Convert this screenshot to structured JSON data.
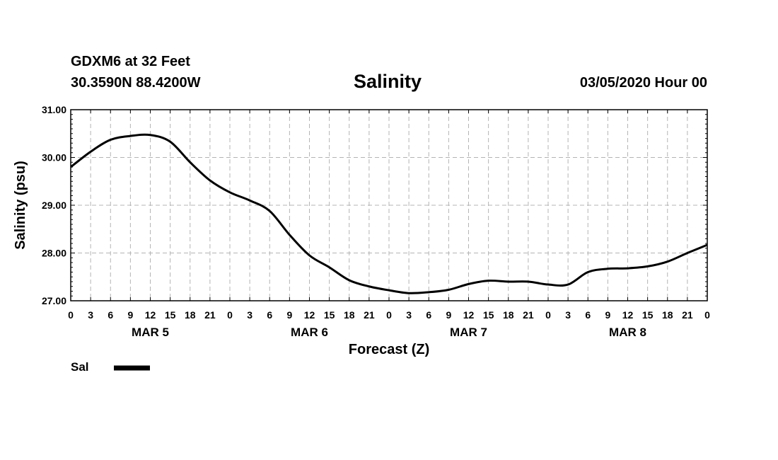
{
  "header": {
    "station": "GDXM6 at 32 Feet",
    "coords": "30.3590N 88.4200W",
    "title": "Salinity",
    "date": "03/05/2020 Hour 00"
  },
  "colors": {
    "line": "#000000",
    "grid": "#b4b4b4",
    "background": "#ffffff"
  },
  "chart_data": {
    "type": "line",
    "title": "Salinity",
    "xlabel": "Forecast (Z)",
    "ylabel": "Salinity (psu)",
    "ylim": [
      27.0,
      31.0
    ],
    "xlim_hours": [
      0,
      96
    ],
    "yticks": [
      "27.00",
      "28.00",
      "29.00",
      "30.00",
      "31.00"
    ],
    "xtick_labels": [
      "0",
      "3",
      "6",
      "9",
      "12",
      "15",
      "18",
      "21",
      "0",
      "3",
      "6",
      "9",
      "12",
      "15",
      "18",
      "21",
      "0",
      "3",
      "6",
      "9",
      "12",
      "15",
      "18",
      "21",
      "0",
      "3",
      "6",
      "9",
      "12",
      "15",
      "18",
      "21",
      "0"
    ],
    "day_labels": [
      "MAR 5",
      "MAR 6",
      "MAR 7",
      "MAR 8"
    ],
    "grid": true,
    "legend": {
      "label": "Sal",
      "placement": "bottom-left"
    },
    "series": [
      {
        "name": "Sal",
        "x_hours": [
          0,
          3,
          6,
          9,
          12,
          15,
          18,
          21,
          24,
          27,
          30,
          33,
          36,
          39,
          42,
          45,
          48,
          51,
          54,
          57,
          60,
          63,
          66,
          69,
          72,
          75,
          78,
          81,
          84,
          87,
          90,
          93,
          96
        ],
        "values": [
          29.8,
          30.12,
          30.37,
          30.45,
          30.47,
          30.33,
          29.9,
          29.52,
          29.27,
          29.1,
          28.88,
          28.38,
          27.95,
          27.7,
          27.43,
          27.3,
          27.22,
          27.16,
          27.18,
          27.23,
          27.35,
          27.42,
          27.4,
          27.4,
          27.34,
          27.34,
          27.6,
          27.67,
          27.68,
          27.72,
          27.82,
          28.0,
          28.17
        ]
      }
    ]
  }
}
